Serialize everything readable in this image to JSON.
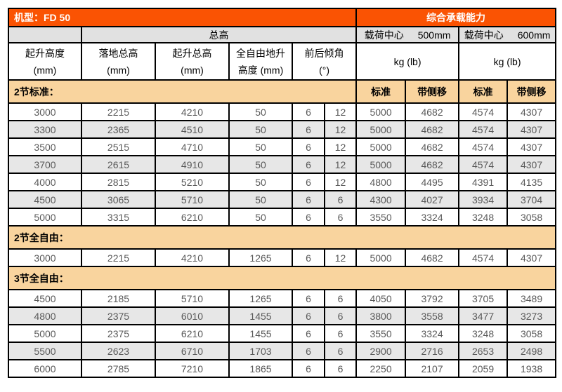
{
  "table": {
    "title": "机型：FD 50",
    "capacity_title": "综合承载能力",
    "overall_height_label": "总高",
    "load_center_500": {
      "label": "载荷中心",
      "value": "500mm"
    },
    "load_center_600": {
      "label": "载荷中心",
      "value": "600mm"
    },
    "columns": [
      {
        "line1": "起升高度",
        "line2": "(mm)"
      },
      {
        "line1": "落地总高",
        "line2": "(mm)"
      },
      {
        "line1": "起升总高",
        "line2": "(mm)"
      },
      {
        "line1": "全自由地升",
        "line2": "高度 (mm)"
      },
      {
        "line1": "前后倾角",
        "line2": "(°)"
      }
    ],
    "kg_lb_500": "kg (lb)",
    "kg_lb_600": "kg (lb)",
    "sections": [
      {
        "label": "2节标准：",
        "sub_headers": [
          "标准",
          "带侧移",
          "标准",
          "带侧移"
        ],
        "rows": [
          [
            "3000",
            "2215",
            "4210",
            "50",
            "6",
            "12",
            "5000",
            "4682",
            "4574",
            "4307"
          ],
          [
            "3300",
            "2365",
            "4510",
            "50",
            "6",
            "12",
            "5000",
            "4682",
            "4574",
            "4307"
          ],
          [
            "3500",
            "2515",
            "4710",
            "50",
            "6",
            "12",
            "5000",
            "4682",
            "4574",
            "4307"
          ],
          [
            "3700",
            "2615",
            "4910",
            "50",
            "6",
            "12",
            "5000",
            "4682",
            "4574",
            "4307"
          ],
          [
            "4000",
            "2815",
            "5210",
            "50",
            "6",
            "12",
            "4800",
            "4495",
            "4391",
            "4135"
          ],
          [
            "4500",
            "3065",
            "5710",
            "50",
            "6",
            "6",
            "4300",
            "4027",
            "3934",
            "3704"
          ],
          [
            "5000",
            "3315",
            "6210",
            "50",
            "6",
            "6",
            "3550",
            "3324",
            "3248",
            "3058"
          ]
        ]
      },
      {
        "label": "2节全自由：",
        "sub_headers": null,
        "rows": [
          [
            "3000",
            "2215",
            "4210",
            "1265",
            "6",
            "12",
            "5000",
            "4682",
            "4574",
            "4307"
          ]
        ]
      },
      {
        "label": "3节全自由：",
        "sub_headers": null,
        "rows": [
          [
            "4500",
            "2185",
            "5710",
            "1265",
            "6",
            "6",
            "4050",
            "3792",
            "3705",
            "3489"
          ],
          [
            "4800",
            "2375",
            "6010",
            "1455",
            "6",
            "6",
            "3800",
            "3558",
            "3477",
            "3273"
          ],
          [
            "5000",
            "2375",
            "6210",
            "1455",
            "6",
            "6",
            "3550",
            "3324",
            "3248",
            "3058"
          ],
          [
            "5500",
            "2623",
            "6710",
            "1703",
            "6",
            "6",
            "2900",
            "2716",
            "2653",
            "2498"
          ],
          [
            "6000",
            "2785",
            "7210",
            "1865",
            "6",
            "6",
            "2250",
            "2107",
            "2059",
            "1938"
          ]
        ]
      }
    ],
    "colors": {
      "header_orange": "#FA5303",
      "section_tan": "#F9D49E",
      "header_gray": "#E1E1E1",
      "shaded_row_gray": "#E7E7E7",
      "data_text": "#595959",
      "border": "#000000"
    }
  }
}
